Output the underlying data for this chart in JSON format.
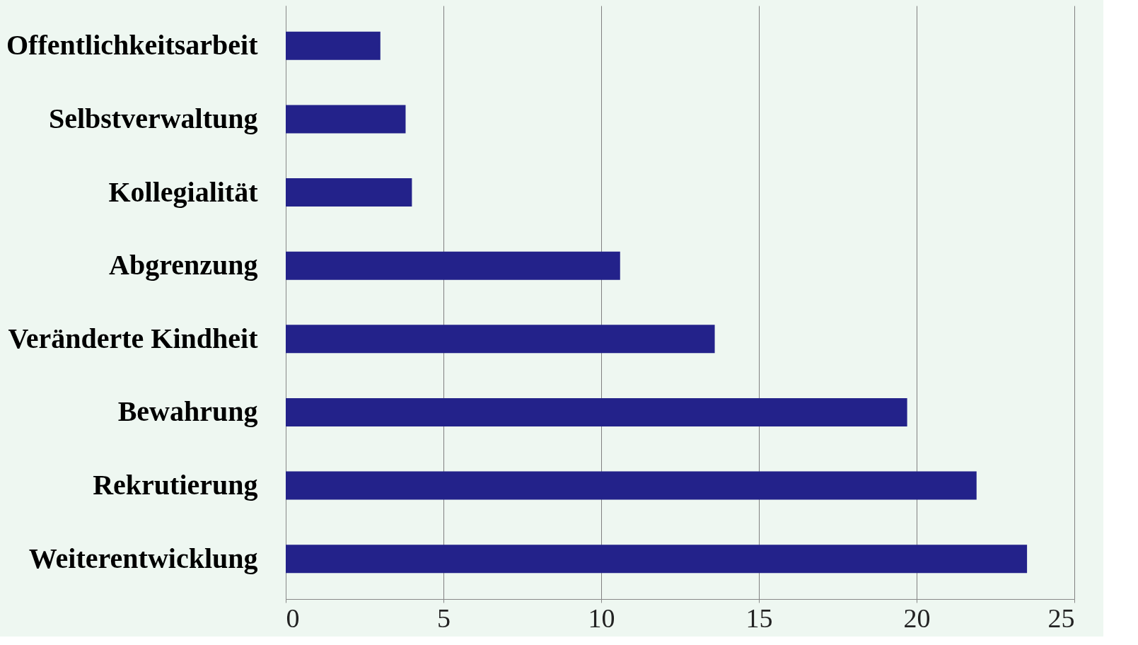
{
  "chart_data": {
    "type": "bar",
    "orientation": "horizontal",
    "categories": [
      "Offentlichkeitsarbeit",
      "Selbstverwaltung",
      "Kollegialität",
      "Abgrenzung",
      "Veränderte Kindheit",
      "Bewahrung",
      "Rekrutierung",
      "Weiterentwicklung"
    ],
    "values": [
      3.0,
      3.8,
      4.0,
      10.6,
      13.6,
      19.7,
      21.9,
      23.5
    ],
    "color": "#23228a",
    "xlim": [
      0,
      25
    ],
    "xticks": [
      0,
      5,
      10,
      15,
      20,
      25
    ],
    "grid": "x"
  }
}
